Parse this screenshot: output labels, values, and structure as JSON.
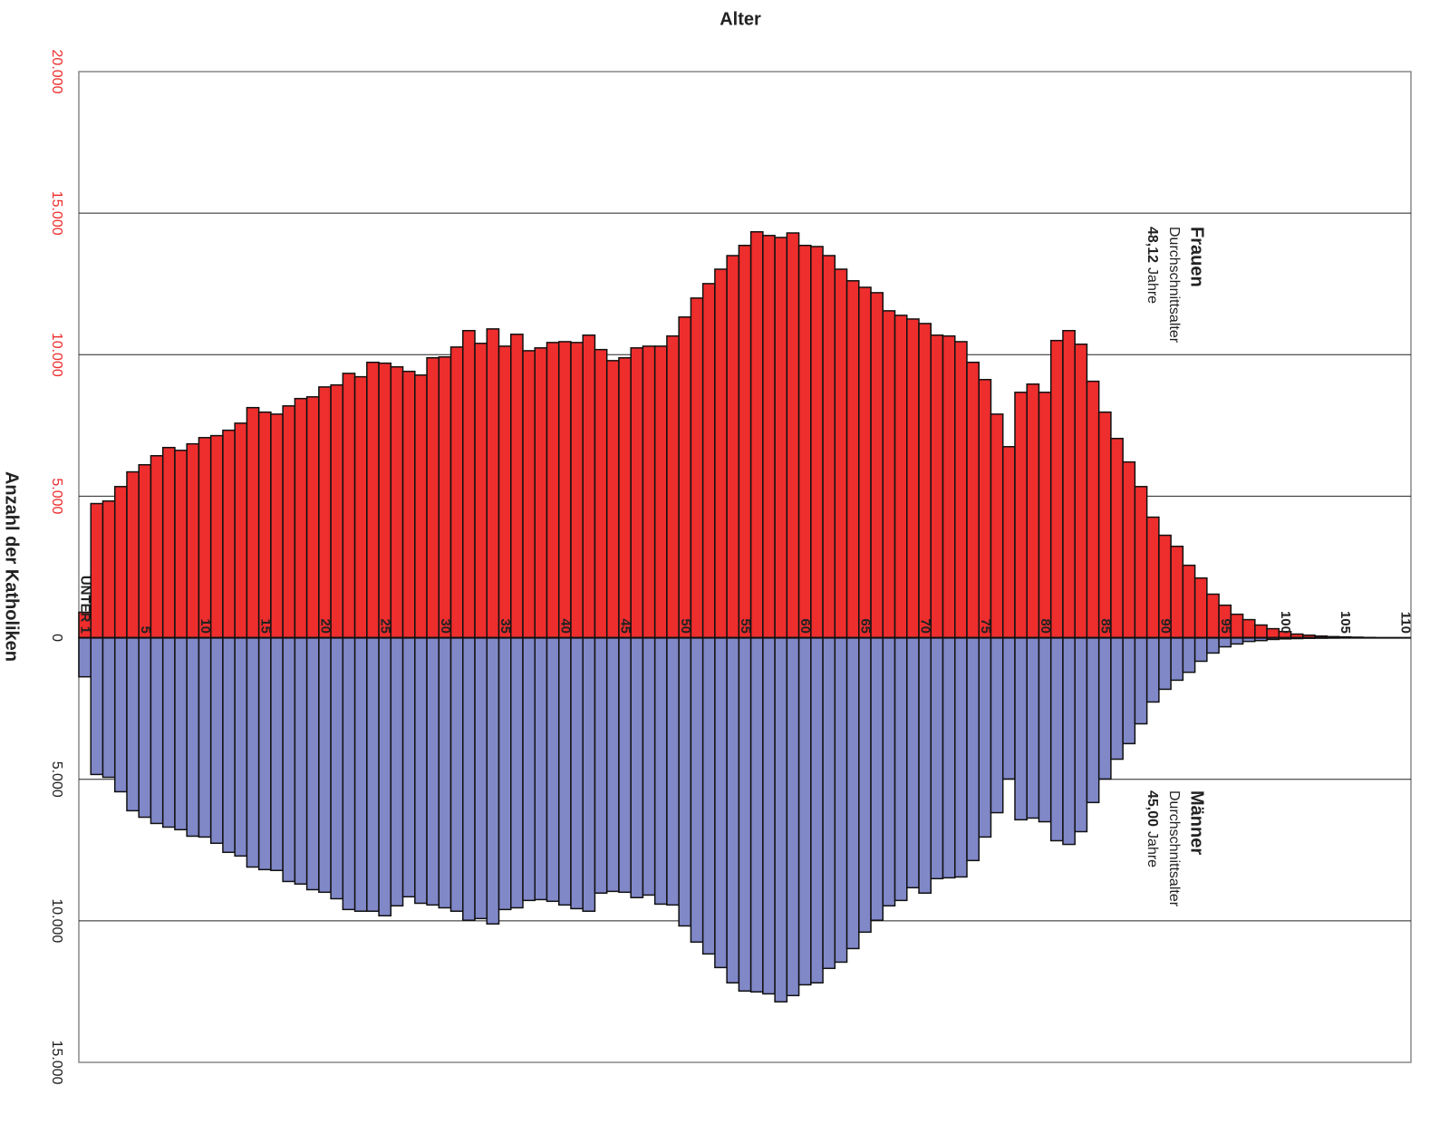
{
  "chart_data": {
    "type": "pyramid",
    "title": "Alter",
    "y_label": "Anzahl der Katholiken",
    "categories": [
      "UNTER 1",
      null,
      null,
      null,
      null,
      "5",
      null,
      null,
      null,
      null,
      "10",
      null,
      null,
      null,
      null,
      "15",
      null,
      null,
      null,
      null,
      "20",
      null,
      null,
      null,
      null,
      "25",
      null,
      null,
      null,
      null,
      "30",
      null,
      null,
      null,
      null,
      "35",
      null,
      null,
      null,
      null,
      "40",
      null,
      null,
      null,
      null,
      "45",
      null,
      null,
      null,
      null,
      "50",
      null,
      null,
      null,
      null,
      "55",
      null,
      null,
      null,
      null,
      "60",
      null,
      null,
      null,
      null,
      "65",
      null,
      null,
      null,
      null,
      "70",
      null,
      null,
      null,
      null,
      "75",
      null,
      null,
      null,
      null,
      "80",
      null,
      null,
      null,
      null,
      "85",
      null,
      null,
      null,
      null,
      "90",
      null,
      null,
      null,
      null,
      "95",
      null,
      null,
      null,
      null,
      "100",
      null,
      null,
      null,
      null,
      "105",
      null,
      null,
      null,
      null,
      "110"
    ],
    "series": [
      {
        "color": "#ee2d2d",
        "values": [
          900,
          4740,
          4830,
          5340,
          5860,
          6110,
          6430,
          6720,
          6620,
          6850,
          7070,
          7140,
          7330,
          7580,
          8130,
          7970,
          7900,
          8190,
          8450,
          8510,
          8860,
          8930,
          9340,
          9220,
          9730,
          9700,
          9570,
          9410,
          9280,
          9890,
          9920,
          10270,
          10850,
          10400,
          10910,
          10300,
          10720,
          10140,
          10240,
          10430,
          10460,
          10430,
          10690,
          10180,
          9790,
          9890,
          10240,
          10300,
          10300,
          10660,
          11330,
          12000,
          12510,
          13020,
          13500,
          13860,
          14340,
          14210,
          14140,
          14300,
          13860,
          13820,
          13500,
          13020,
          12610,
          12380,
          12190,
          11550,
          11390,
          11260,
          11100,
          10690,
          10660,
          10460,
          9730,
          9120,
          7900,
          6750,
          8670,
          8960,
          8670,
          10500,
          10850,
          10370,
          9060,
          7970,
          7040,
          6210,
          5340,
          4260,
          3620,
          3230,
          2560,
          2110,
          1540,
          1150,
          830,
          640,
          450,
          320,
          220,
          130,
          90,
          60,
          40,
          30,
          20,
          10,
          0,
          0,
          0
        ]
      },
      {
        "color": "#8088c8",
        "values": [
          -1380,
          -4830,
          -4930,
          -5440,
          -6110,
          -6340,
          -6560,
          -6690,
          -6780,
          -7010,
          -7040,
          -7260,
          -7580,
          -7710,
          -8100,
          -8190,
          -8220,
          -8610,
          -8700,
          -8900,
          -8990,
          -9220,
          -9600,
          -9660,
          -9660,
          -9820,
          -9470,
          -9150,
          -9380,
          -9440,
          -9540,
          -9660,
          -9980,
          -9920,
          -10110,
          -9600,
          -9540,
          -9280,
          -9250,
          -9310,
          -9440,
          -9570,
          -9660,
          -9020,
          -8960,
          -8990,
          -9180,
          -9090,
          -9410,
          -9440,
          -10180,
          -10750,
          -11170,
          -11650,
          -12190,
          -12480,
          -12510,
          -12580,
          -12860,
          -12640,
          -12260,
          -12190,
          -11680,
          -11460,
          -10980,
          -10400,
          -9980,
          -9470,
          -9280,
          -8830,
          -9020,
          -8510,
          -8480,
          -8450,
          -7870,
          -7040,
          -6180,
          -4990,
          -6430,
          -6370,
          -6500,
          -7170,
          -7300,
          -6850,
          -5820,
          -4990,
          -4290,
          -3740,
          -3040,
          -2270,
          -1820,
          -1500,
          -1220,
          -830,
          -540,
          -320,
          -220,
          -130,
          -100,
          -60,
          -40,
          -30,
          -20,
          -15,
          -10,
          -5,
          -5,
          0,
          0,
          0,
          0
        ]
      }
    ],
    "annotations": [
      {
        "title": "Frauen",
        "text": "Durchschnittsalter",
        "value": "48,12",
        "unit": "Jahre"
      },
      {
        "title": "Männer",
        "text": "Durchschnittsalter",
        "value": "45,00",
        "unit": "Jahre"
      }
    ],
    "ylim": [
      -15000,
      20000
    ],
    "yticks": [
      {
        "value": -15000,
        "label": "15.000"
      },
      {
        "value": -10000,
        "label": "10.000"
      },
      {
        "value": -5000,
        "label": "5.000"
      },
      0,
      {
        "value": 5000,
        "label": "5.000"
      },
      {
        "value": 10000,
        "label": "10.000"
      },
      {
        "value": 15000,
        "label": "15.000"
      },
      {
        "value": 20000,
        "label": "20.000"
      }
    ],
    "grid": true
  }
}
